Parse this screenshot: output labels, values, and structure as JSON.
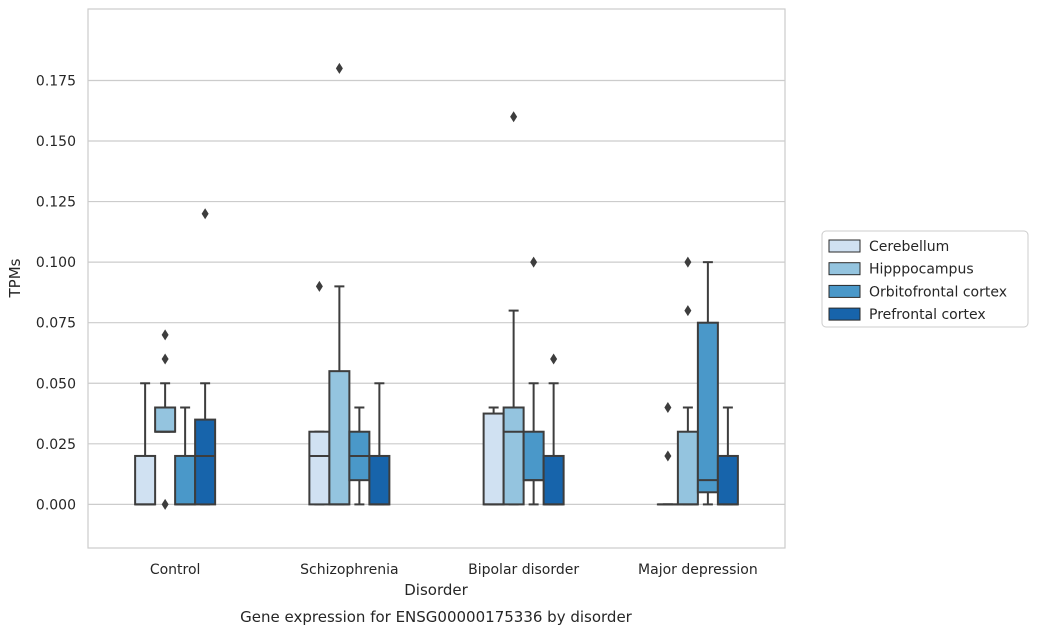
{
  "chart_data": {
    "type": "boxplot",
    "caption": "Gene expression for ENSG00000175336 by disorder",
    "xlabel": "Disorder",
    "ylabel": "TPMs",
    "ylim": [
      -0.018,
      0.2045
    ],
    "yticks": [
      0.0,
      0.025,
      0.05,
      0.075,
      0.1,
      0.125,
      0.15,
      0.175
    ],
    "ytick_labels": [
      "0.000",
      "0.025",
      "0.050",
      "0.075",
      "0.100",
      "0.125",
      "0.150",
      "0.175"
    ],
    "categories": [
      "Control",
      "Schizophrenia",
      "Bipolar disorder",
      "Major depression"
    ],
    "grid": "horizontal",
    "legend_position": "right",
    "series": [
      {
        "name": "Cerebellum",
        "color": "#d0e1f2",
        "boxes": [
          {
            "whislo": 0.0,
            "q1": 0.0,
            "med": 0.0,
            "q3": 0.02,
            "whishi": 0.05,
            "fliers": []
          },
          {
            "whislo": 0.0,
            "q1": 0.0,
            "med": 0.02,
            "q3": 0.03,
            "whishi": 0.03,
            "fliers": [
              0.09
            ]
          },
          {
            "whislo": 0.0,
            "q1": 0.0,
            "med": 0.0,
            "q3": 0.0375,
            "whishi": 0.04,
            "fliers": []
          },
          {
            "whislo": 0.0,
            "q1": 0.0,
            "med": 0.0,
            "q3": 0.0,
            "whishi": 0.0,
            "fliers": [
              0.02,
              0.04
            ]
          }
        ]
      },
      {
        "name": "Hipppocampus",
        "color": "#94c4df",
        "boxes": [
          {
            "whislo": 0.03,
            "q1": 0.03,
            "med": 0.03,
            "q3": 0.04,
            "whishi": 0.05,
            "fliers": [
              0.0,
              0.06,
              0.07
            ]
          },
          {
            "whislo": 0.0,
            "q1": 0.0,
            "med": 0.0,
            "q3": 0.055,
            "whishi": 0.09,
            "fliers": [
              0.18
            ]
          },
          {
            "whislo": 0.0,
            "q1": 0.0,
            "med": 0.03,
            "q3": 0.04,
            "whishi": 0.08,
            "fliers": [
              0.16
            ]
          },
          {
            "whislo": 0.0,
            "q1": 0.0,
            "med": 0.0,
            "q3": 0.03,
            "whishi": 0.04,
            "fliers": [
              0.08,
              0.1
            ]
          }
        ]
      },
      {
        "name": "Orbitofrontal cortex",
        "color": "#4a98c9",
        "boxes": [
          {
            "whislo": 0.0,
            "q1": 0.0,
            "med": 0.0,
            "q3": 0.02,
            "whishi": 0.04,
            "fliers": []
          },
          {
            "whislo": 0.0,
            "q1": 0.01,
            "med": 0.02,
            "q3": 0.03,
            "whishi": 0.04,
            "fliers": []
          },
          {
            "whislo": 0.0,
            "q1": 0.01,
            "med": 0.01,
            "q3": 0.03,
            "whishi": 0.05,
            "fliers": [
              0.1
            ]
          },
          {
            "whislo": 0.0,
            "q1": 0.005,
            "med": 0.01,
            "q3": 0.075,
            "whishi": 0.1,
            "fliers": []
          }
        ]
      },
      {
        "name": "Prefrontal cortex",
        "color": "#1764ab",
        "boxes": [
          {
            "whislo": 0.0,
            "q1": 0.0,
            "med": 0.02,
            "q3": 0.035,
            "whishi": 0.05,
            "fliers": [
              0.12
            ]
          },
          {
            "whislo": 0.0,
            "q1": 0.0,
            "med": 0.0,
            "q3": 0.02,
            "whishi": 0.05,
            "fliers": []
          },
          {
            "whislo": 0.0,
            "q1": 0.0,
            "med": 0.0,
            "q3": 0.02,
            "whishi": 0.05,
            "fliers": [
              0.06
            ]
          },
          {
            "whislo": 0.0,
            "q1": 0.0,
            "med": 0.0,
            "q3": 0.02,
            "whishi": 0.04,
            "fliers": []
          }
        ]
      }
    ]
  }
}
